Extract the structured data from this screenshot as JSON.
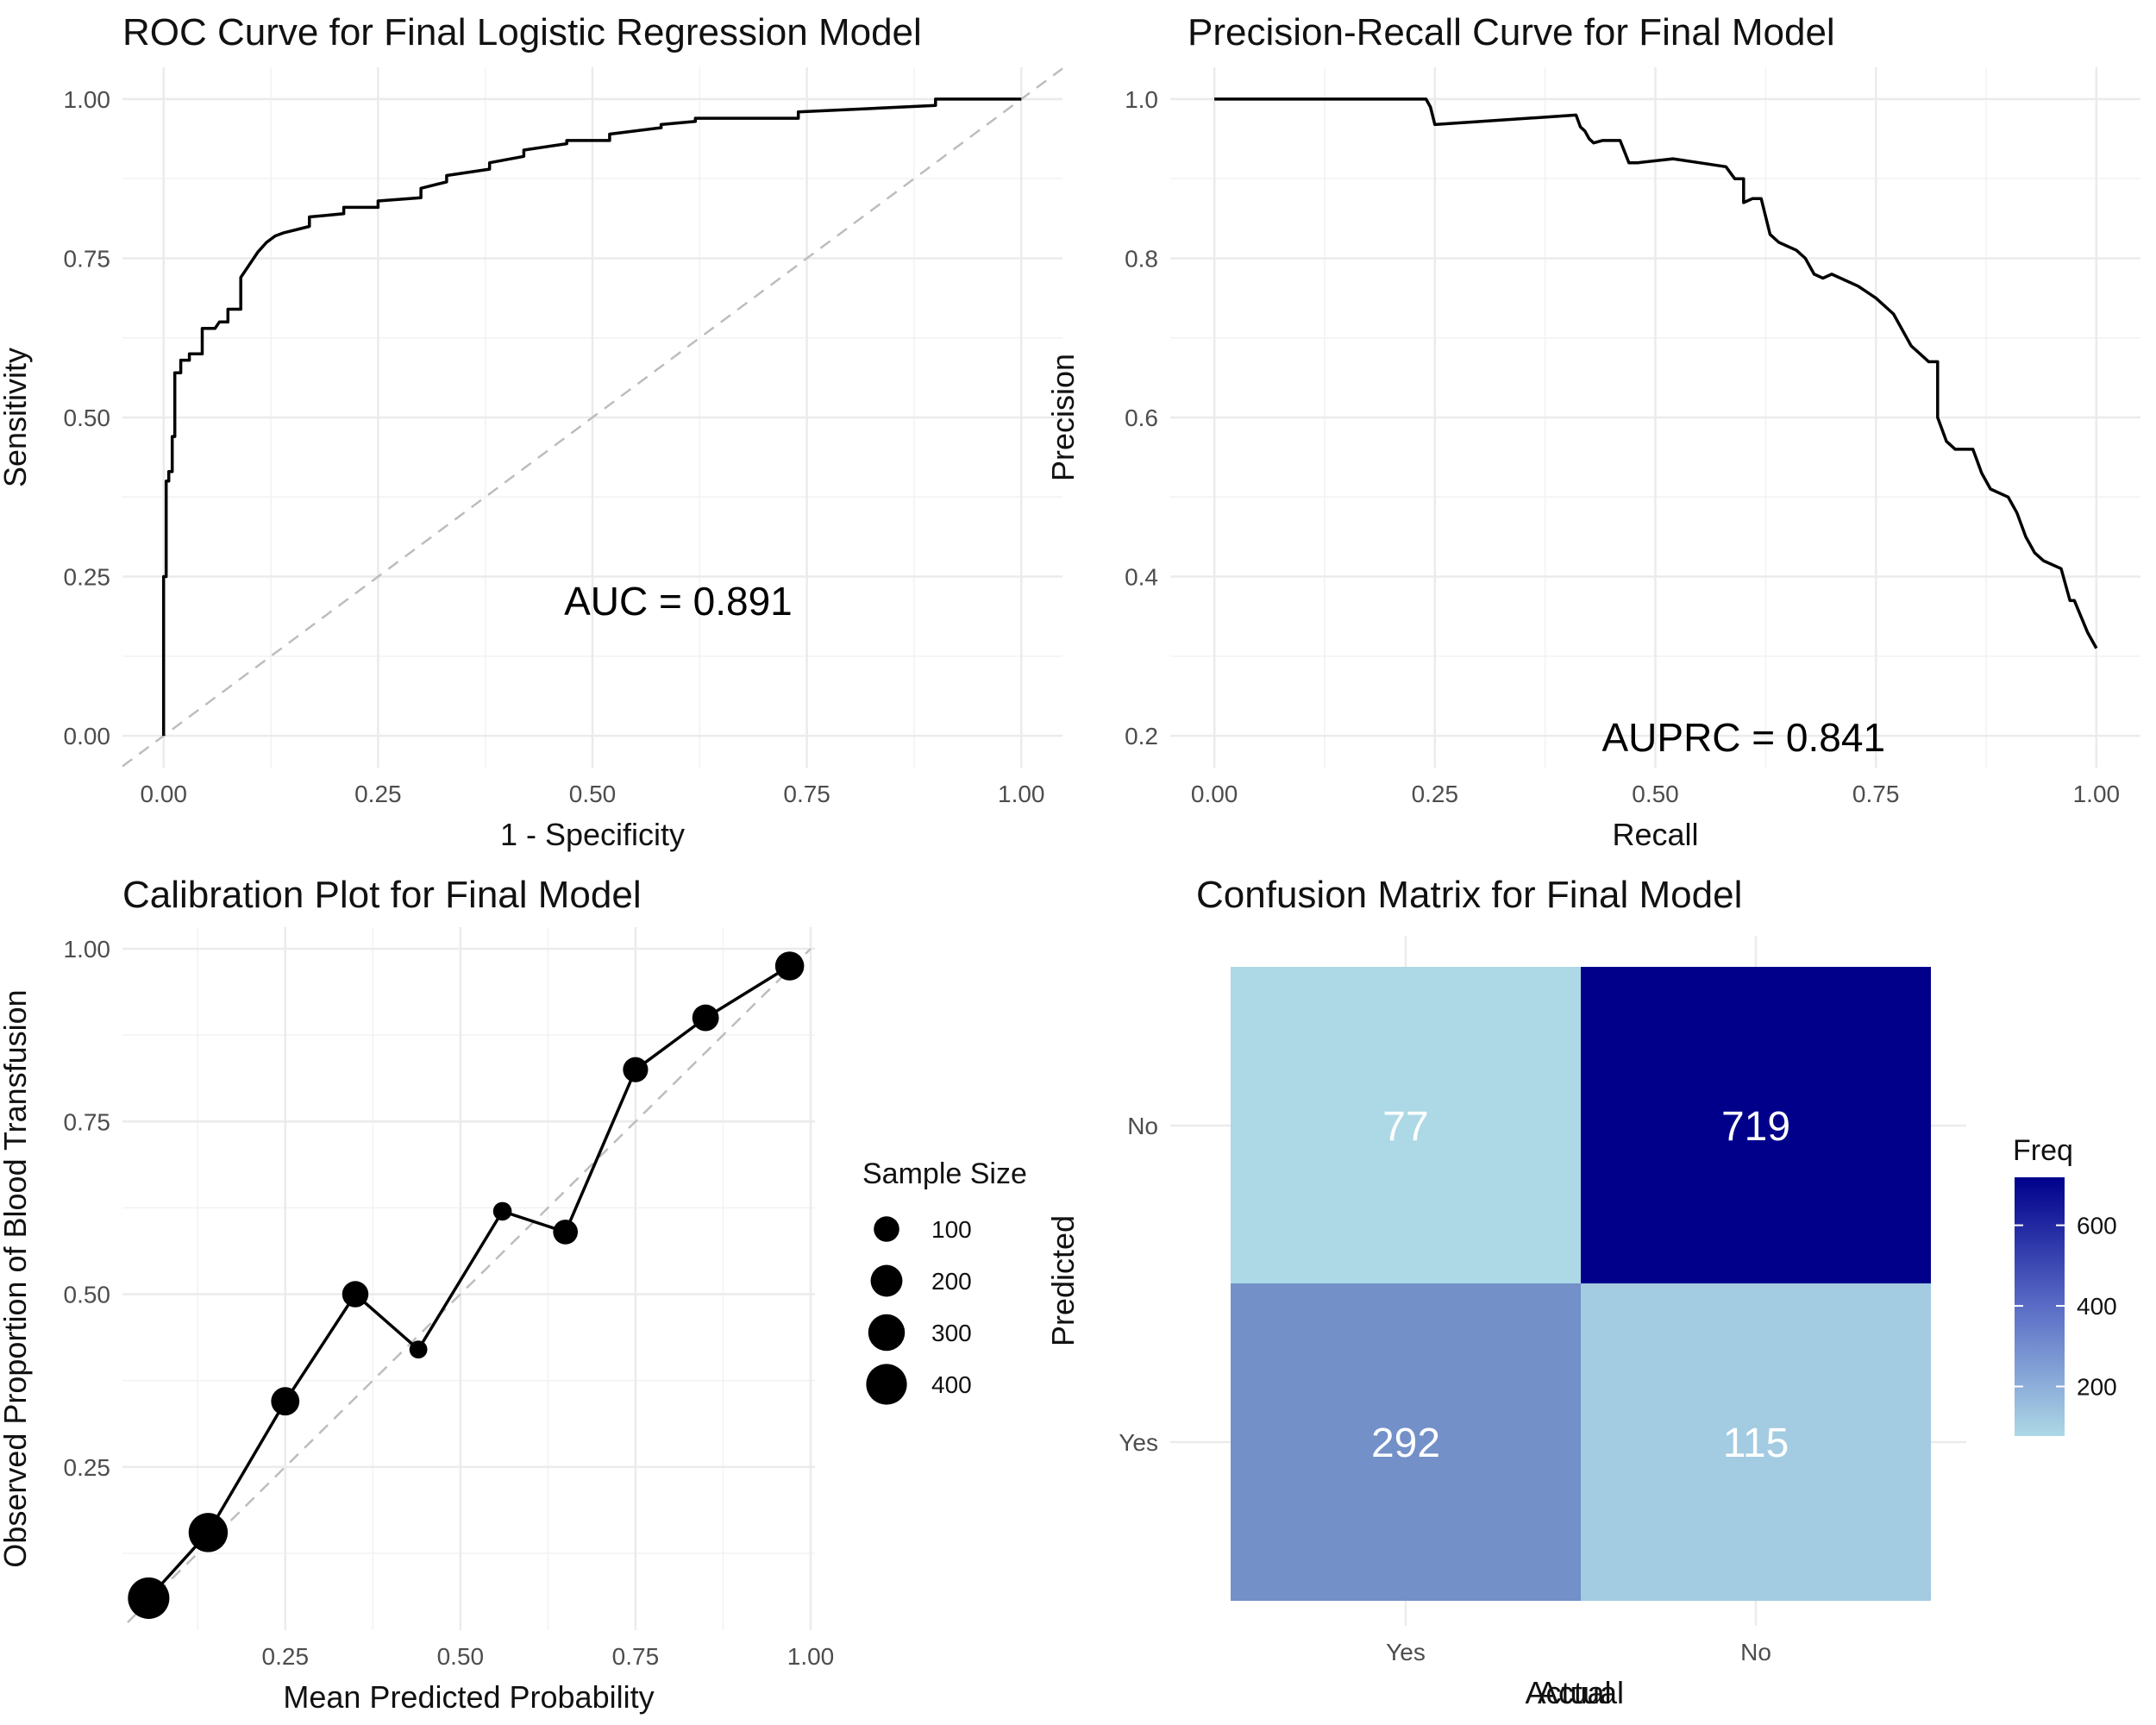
{
  "chart_data": [
    {
      "type": "line",
      "title": "ROC Curve for Final Logistic Regression Model",
      "xlabel": "1 - Specificity",
      "ylabel": "Sensitivity",
      "xlim": [
        0,
        1
      ],
      "ylim": [
        0,
        1
      ],
      "x_ticks": [
        "0.00",
        "0.25",
        "0.50",
        "0.75",
        "1.00"
      ],
      "y_ticks": [
        "0.00",
        "0.25",
        "0.50",
        "0.75",
        "1.00"
      ],
      "annotation": "AUC = 0.891",
      "reference_line": "diagonal",
      "series": [
        {
          "name": "ROC",
          "x": [
            0,
            0,
            0.003,
            0.003,
            0.006,
            0.006,
            0.01,
            0.01,
            0.013,
            0.013,
            0.02,
            0.02,
            0.03,
            0.03,
            0.045,
            0.045,
            0.06,
            0.065,
            0.075,
            0.075,
            0.09,
            0.09,
            0.1,
            0.11,
            0.12,
            0.13,
            0.14,
            0.17,
            0.17,
            0.21,
            0.21,
            0.25,
            0.25,
            0.3,
            0.3,
            0.33,
            0.33,
            0.38,
            0.38,
            0.42,
            0.42,
            0.47,
            0.47,
            0.52,
            0.52,
            0.58,
            0.58,
            0.62,
            0.62,
            0.74,
            0.74,
            0.9,
            0.9,
            1.0
          ],
          "y": [
            0,
            0.25,
            0.25,
            0.4,
            0.4,
            0.415,
            0.415,
            0.47,
            0.47,
            0.57,
            0.57,
            0.59,
            0.59,
            0.6,
            0.6,
            0.64,
            0.64,
            0.65,
            0.65,
            0.67,
            0.67,
            0.72,
            0.74,
            0.76,
            0.775,
            0.785,
            0.79,
            0.8,
            0.815,
            0.82,
            0.83,
            0.83,
            0.84,
            0.845,
            0.86,
            0.87,
            0.88,
            0.89,
            0.9,
            0.91,
            0.92,
            0.93,
            0.935,
            0.935,
            0.945,
            0.955,
            0.96,
            0.965,
            0.97,
            0.97,
            0.98,
            0.99,
            1.0,
            1.0
          ]
        }
      ]
    },
    {
      "type": "line",
      "title": "Precision-Recall Curve for Final Model",
      "xlabel": "Recall",
      "ylabel": "Precision",
      "xlim": [
        0,
        1
      ],
      "ylim": [
        0.2,
        1.0
      ],
      "x_ticks": [
        "0.00",
        "0.25",
        "0.50",
        "0.75",
        "1.00"
      ],
      "y_ticks": [
        "0.2",
        "0.4",
        "0.6",
        "0.8",
        "1.0"
      ],
      "annotation": "AUPRC = 0.841",
      "series": [
        {
          "name": "PR",
          "x": [
            0,
            0.24,
            0.245,
            0.25,
            0.41,
            0.415,
            0.42,
            0.425,
            0.43,
            0.44,
            0.46,
            0.47,
            0.48,
            0.52,
            0.55,
            0.58,
            0.59,
            0.6,
            0.6,
            0.61,
            0.62,
            0.63,
            0.64,
            0.66,
            0.67,
            0.68,
            0.69,
            0.7,
            0.73,
            0.75,
            0.77,
            0.79,
            0.8,
            0.81,
            0.82,
            0.82,
            0.83,
            0.84,
            0.86,
            0.87,
            0.88,
            0.9,
            0.91,
            0.92,
            0.93,
            0.94,
            0.96,
            0.97,
            0.975,
            0.99,
            1.0
          ],
          "y": [
            1.0,
            1.0,
            0.99,
            0.968,
            0.98,
            0.965,
            0.96,
            0.95,
            0.945,
            0.948,
            0.948,
            0.92,
            0.92,
            0.925,
            0.92,
            0.915,
            0.9,
            0.9,
            0.87,
            0.875,
            0.875,
            0.83,
            0.82,
            0.81,
            0.8,
            0.78,
            0.775,
            0.78,
            0.765,
            0.75,
            0.73,
            0.69,
            0.68,
            0.67,
            0.67,
            0.6,
            0.57,
            0.56,
            0.56,
            0.53,
            0.51,
            0.5,
            0.48,
            0.45,
            0.43,
            0.42,
            0.41,
            0.37,
            0.37,
            0.33,
            0.31
          ]
        }
      ]
    },
    {
      "type": "scatter",
      "title": "Calibration Plot for Final Model",
      "xlabel": "Mean Predicted Probability",
      "ylabel": "Observed Proportion of Blood Transfusion",
      "xlim": [
        0.025,
        1.0
      ],
      "ylim": [
        0.02,
        1.0
      ],
      "x_ticks": [
        "0.25",
        "0.50",
        "0.75",
        "1.00"
      ],
      "y_ticks": [
        "0.25",
        "0.50",
        "0.75",
        "1.00"
      ],
      "reference_line": "diagonal",
      "connect_points": true,
      "points": [
        {
          "x": 0.055,
          "y": 0.06,
          "size": 420
        },
        {
          "x": 0.14,
          "y": 0.155,
          "size": 360
        },
        {
          "x": 0.25,
          "y": 0.345,
          "size": 140
        },
        {
          "x": 0.35,
          "y": 0.5,
          "size": 110
        },
        {
          "x": 0.44,
          "y": 0.42,
          "size": 25
        },
        {
          "x": 0.56,
          "y": 0.62,
          "size": 30
        },
        {
          "x": 0.65,
          "y": 0.59,
          "size": 90
        },
        {
          "x": 0.75,
          "y": 0.825,
          "size": 95
        },
        {
          "x": 0.85,
          "y": 0.9,
          "size": 115
        },
        {
          "x": 0.97,
          "y": 0.975,
          "size": 150
        }
      ],
      "legend": {
        "title": "Sample Size",
        "position": "right",
        "entries": [
          {
            "label": "100",
            "size": 100
          },
          {
            "label": "200",
            "size": 200
          },
          {
            "label": "300",
            "size": 300
          },
          {
            "label": "400",
            "size": 400
          }
        ]
      }
    },
    {
      "type": "heatmap",
      "title": "Confusion Matrix for Final Model",
      "xlabel": "Actual",
      "ylabel": "Predicted",
      "x_categories": [
        "Yes",
        "No"
      ],
      "y_categories": [
        "No",
        "Yes"
      ],
      "cells": [
        {
          "actual": "Yes",
          "predicted": "No",
          "value": "77"
        },
        {
          "actual": "No",
          "predicted": "No",
          "value": "719"
        },
        {
          "actual": "Yes",
          "predicted": "Yes",
          "value": "292"
        },
        {
          "actual": "No",
          "predicted": "Yes",
          "value": "115"
        }
      ],
      "legend": {
        "title": "Freq",
        "position": "right",
        "ticks": [
          "200",
          "400",
          "600"
        ],
        "min": 77,
        "max": 719,
        "low_color": "#add8e6",
        "high_color": "#00008b"
      }
    }
  ]
}
